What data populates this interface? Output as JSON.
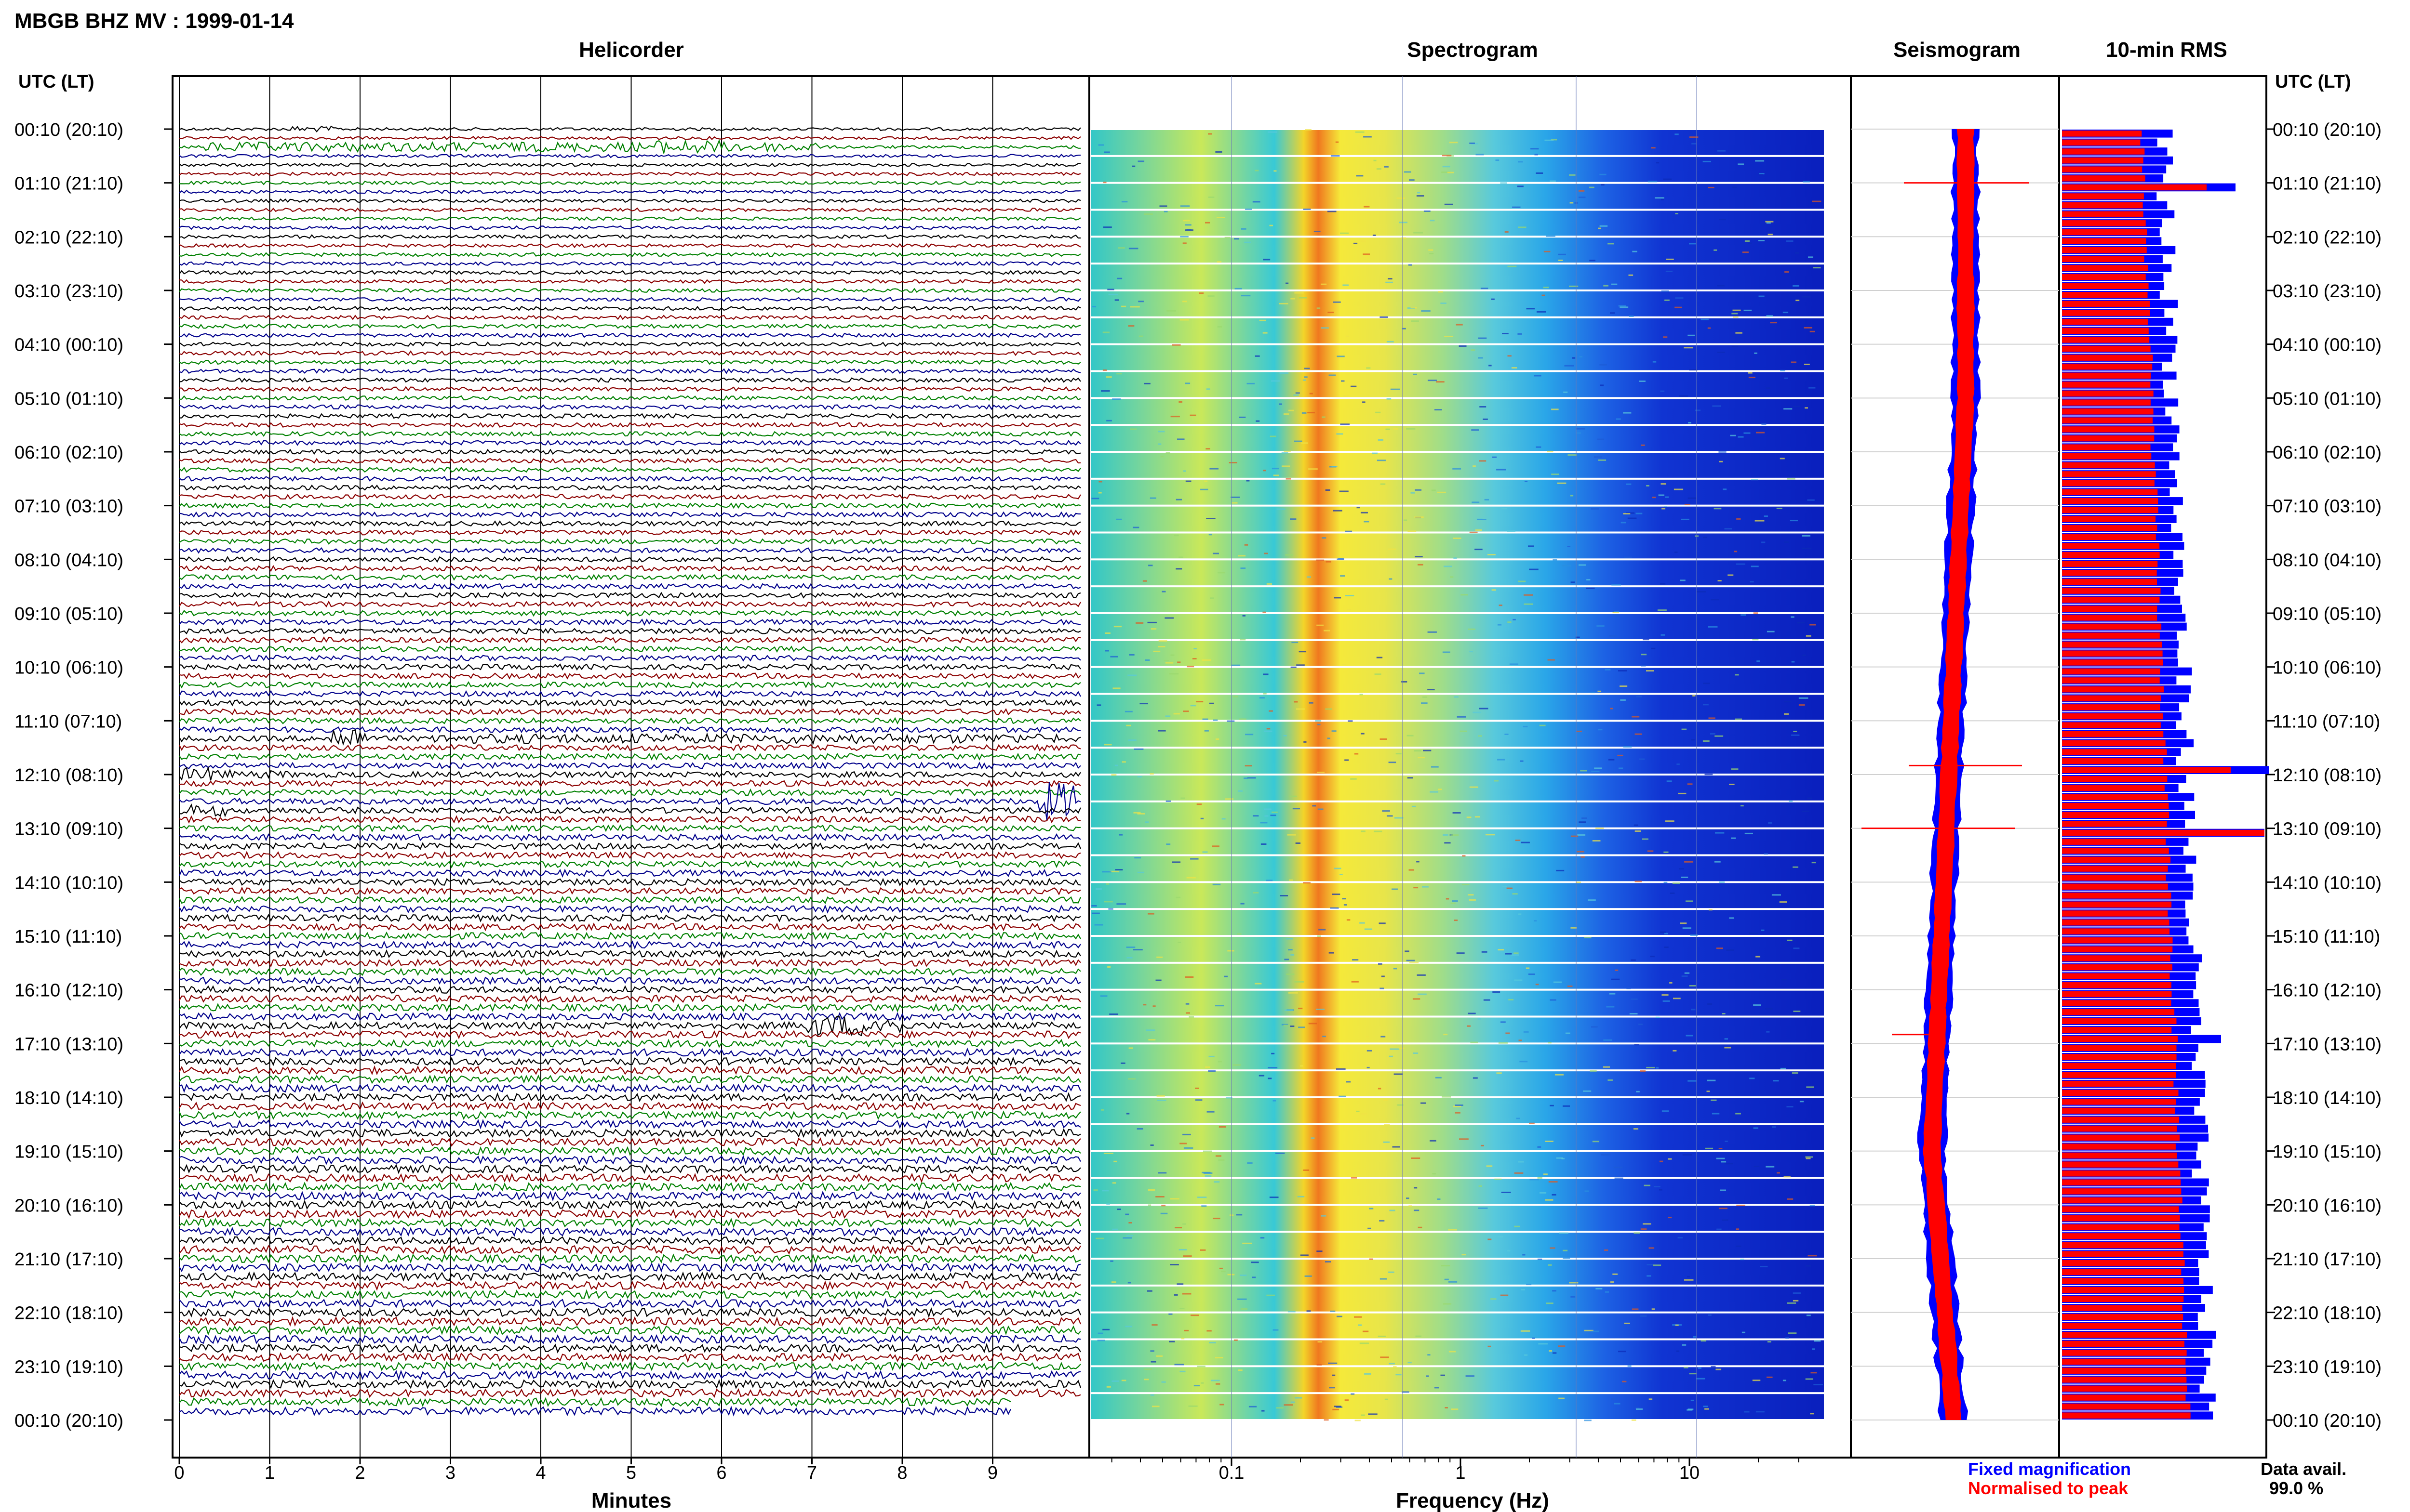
{
  "header": {
    "station_title": "MBGB BHZ MV : 1999-01-14"
  },
  "panels": {
    "helicorder": "Helicorder",
    "spectrogram": "Spectrogram",
    "seismogram": "Seismogram",
    "rms": "10-min RMS"
  },
  "time_axis": {
    "label": "UTC (LT)",
    "ticks": [
      "00:10 (20:10)",
      "01:10 (21:10)",
      "02:10 (22:10)",
      "03:10 (23:10)",
      "04:10 (00:10)",
      "05:10 (01:10)",
      "06:10 (02:10)",
      "07:10 (03:10)",
      "08:10 (04:10)",
      "09:10 (05:10)",
      "10:10 (06:10)",
      "11:10 (07:10)",
      "12:10 (08:10)",
      "13:10 (09:10)",
      "14:10 (10:10)",
      "15:10 (11:10)",
      "16:10 (12:10)",
      "17:10 (13:10)",
      "18:10 (14:10)",
      "19:10 (15:10)",
      "20:10 (16:10)",
      "21:10 (17:10)",
      "22:10 (18:10)",
      "23:10 (19:10)",
      "00:10 (20:10)"
    ]
  },
  "helicorder_axis": {
    "label": "Minutes",
    "ticks": [
      "0",
      "1",
      "2",
      "3",
      "4",
      "5",
      "6",
      "7",
      "8",
      "9"
    ]
  },
  "spectrogram_axis": {
    "label": "Frequency (Hz)",
    "ticks": [
      "0.1",
      "1",
      "10"
    ]
  },
  "legend": {
    "fixed": "Fixed magnification",
    "normalised": "Normalised to peak",
    "fixed_color": "#0000ff",
    "normalised_color": "#ff0000"
  },
  "availability": {
    "label": "Data avail.",
    "value": "99.0 %"
  },
  "colors": {
    "trace_cycle": [
      "#000000",
      "#8b0000",
      "#008000",
      "#00008b"
    ],
    "fixed": "#0000ff",
    "normalised": "#ff0000"
  },
  "chart_data": {
    "type": "heatmap",
    "rows_per_hour": 6,
    "rows": 144,
    "events_utc": [
      "00:30",
      "01:00",
      "04:10",
      "11:50",
      "12:20",
      "13:00",
      "13:10",
      "17:30"
    ],
    "rms_norm_spikes": [
      {
        "time": "01:00",
        "relative_width": 0.8
      },
      {
        "time": "11:50",
        "relative_width": 0.8
      },
      {
        "time": "13:00",
        "relative_width": 1.0
      }
    ],
    "seismogram_drift_direction": "left toward 18:00-20:00, returns right by 23:00",
    "frequency_range_hz": [
      0.02,
      40
    ],
    "spectrogram_scale": "log"
  }
}
